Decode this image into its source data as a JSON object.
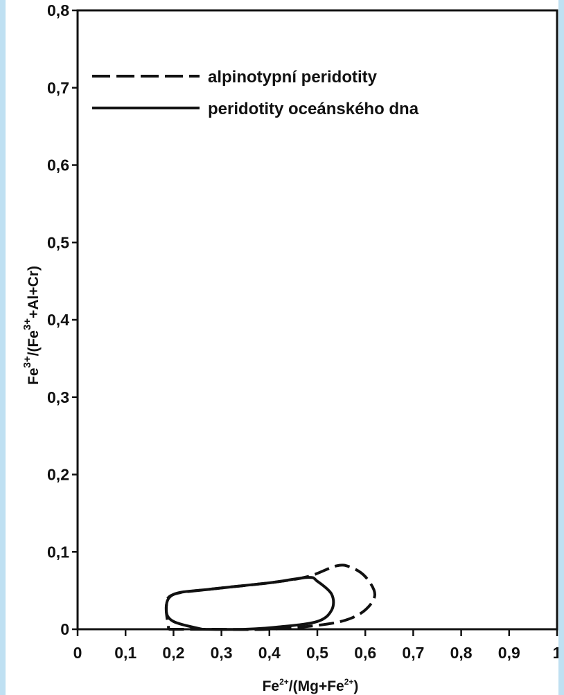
{
  "colors": {
    "page": "#ffffff",
    "frame": "#bfe0f2",
    "ink": "#111111"
  },
  "chart_data": {
    "type": "line",
    "xlim": [
      0,
      1
    ],
    "ylim": [
      0,
      0.8
    ],
    "x_ticks": [
      "0",
      "0,1",
      "0,2",
      "0,3",
      "0,4",
      "0,5",
      "0,6",
      "0,7",
      "0,8",
      "0,9",
      "1"
    ],
    "y_ticks": [
      "0",
      "0,1",
      "0,2",
      "0,3",
      "0,4",
      "0,5",
      "0,6",
      "0,7",
      "0,8"
    ],
    "xlabel": {
      "base": "Fe",
      "sup1": "2+",
      "mid": "/(Mg+Fe",
      "sup2": "2+",
      "end": ")"
    },
    "ylabel": {
      "base": "Fe",
      "sup1": "3+",
      "mid": "/(Fe",
      "sup2": "3+",
      "end": "+Al+Cr)"
    },
    "legend_position": "top-left",
    "grid": false,
    "series": [
      {
        "name": "alpinotypní peridotity",
        "style": "dashed",
        "points": [
          [
            0.19,
            0.0
          ],
          [
            0.28,
            0.0
          ],
          [
            0.4,
            0.0
          ],
          [
            0.5,
            0.005
          ],
          [
            0.56,
            0.012
          ],
          [
            0.6,
            0.025
          ],
          [
            0.62,
            0.045
          ],
          [
            0.6,
            0.068
          ],
          [
            0.57,
            0.08
          ],
          [
            0.54,
            0.082
          ],
          [
            0.48,
            0.068
          ],
          [
            0.4,
            0.06
          ],
          [
            0.28,
            0.052
          ],
          [
            0.2,
            0.045
          ],
          [
            0.185,
            0.03
          ],
          [
            0.19,
            0.0
          ]
        ]
      },
      {
        "name": "peridotity oceánského dna",
        "style": "solid",
        "points": [
          [
            0.26,
            0.0
          ],
          [
            0.35,
            0.0
          ],
          [
            0.42,
            0.003
          ],
          [
            0.5,
            0.01
          ],
          [
            0.53,
            0.025
          ],
          [
            0.53,
            0.045
          ],
          [
            0.5,
            0.062
          ],
          [
            0.48,
            0.067
          ],
          [
            0.4,
            0.06
          ],
          [
            0.28,
            0.052
          ],
          [
            0.2,
            0.045
          ],
          [
            0.185,
            0.025
          ],
          [
            0.2,
            0.01
          ],
          [
            0.26,
            0.0
          ]
        ]
      }
    ]
  }
}
